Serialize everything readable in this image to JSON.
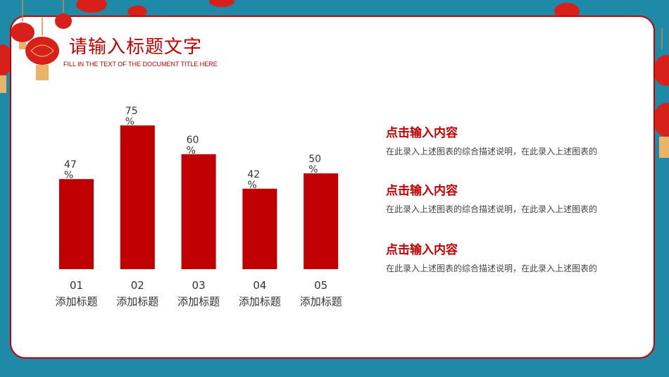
{
  "header": {
    "title": "请输入标题文字",
    "subtitle": "FILL IN THE TEXT OF THE DOCUMENT TITLE HERE"
  },
  "chart_data": {
    "type": "bar",
    "categories": [
      "01",
      "02",
      "03",
      "04",
      "05"
    ],
    "category_sublabels": [
      "添加标题",
      "添加标题",
      "添加标题",
      "添加标题",
      "添加标题"
    ],
    "values": [
      47,
      75,
      60,
      42,
      50
    ],
    "value_labels": [
      "47\n%",
      "75\n%",
      "60\n%",
      "42\n%",
      "50\n%"
    ],
    "ylim": [
      0,
      100
    ],
    "bar_color": "#c00000",
    "grid": false
  },
  "items": [
    {
      "heading": "点击输入内容",
      "desc": "在此录入上述图表的综合描述说明，在此录入上述图表的"
    },
    {
      "heading": "点击输入内容",
      "desc": "在此录入上述图表的综合描述说明，在此录入上述图表的"
    },
    {
      "heading": "点击输入内容",
      "desc": "在此录入上述图表的综合描述说明，在此录入上述图表的"
    }
  ],
  "colors": {
    "accent": "#c00000",
    "background": "#1e8aa8"
  },
  "decorations": [
    "lantern-icon"
  ]
}
